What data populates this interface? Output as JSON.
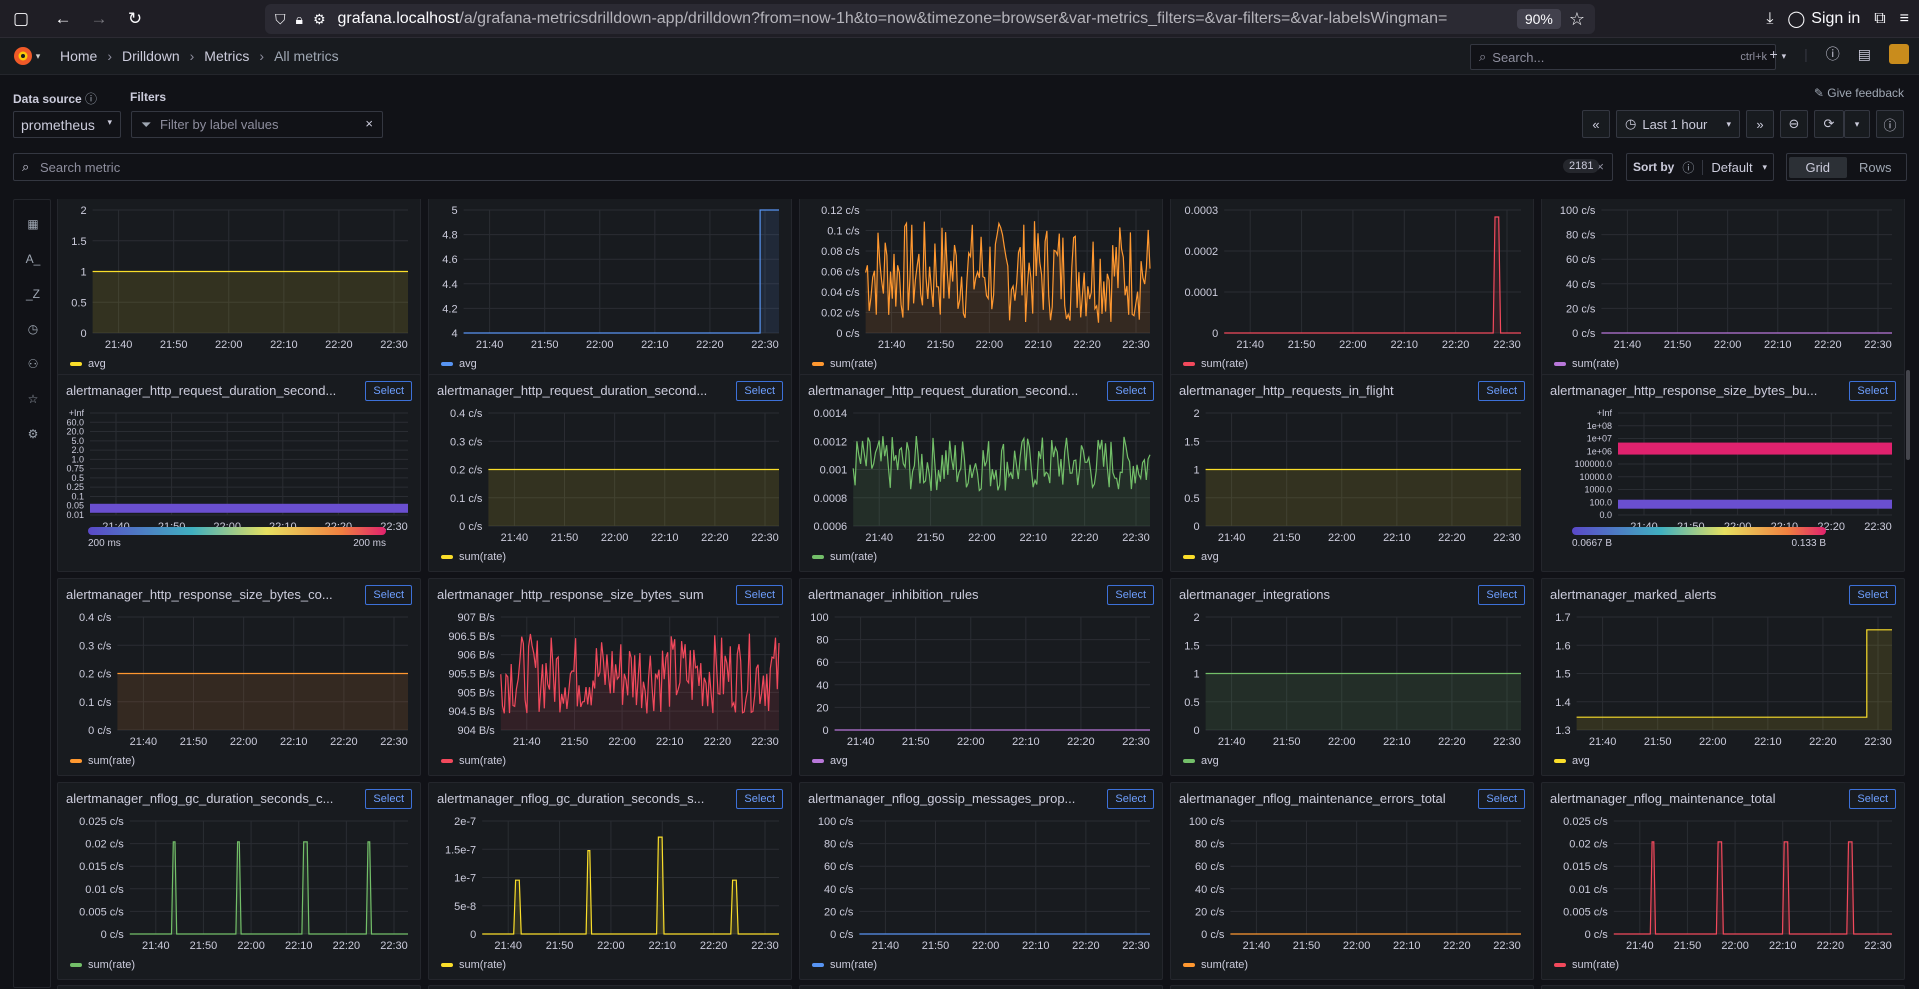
{
  "browser": {
    "url_host": "grafana.localhost",
    "url_path": "/a/grafana-metricsdrilldown-app/drilldown?from=now-1h&to=now&timezone=browser&var-metrics_filters=&var-filters=&var-labelsWingman=",
    "zoom": "90%",
    "signin": "Sign in"
  },
  "nav": {
    "breadcrumbs": [
      "Home",
      "Drilldown",
      "Metrics",
      "All metrics"
    ],
    "search_placeholder": "Search...",
    "search_shortcut": "ctrl+k",
    "plus_label": "+"
  },
  "controls": {
    "datasource_label": "Data source",
    "datasource_value": "prometheus",
    "filters_label": "Filters",
    "filters_placeholder": "Filter by label values",
    "feedback": "Give feedback",
    "time_range": "Last 1 hour",
    "search_metric_placeholder": "Search metric",
    "metric_count": "2181",
    "sort_label": "Sort by",
    "sort_value": "Default",
    "view_grid": "Grid",
    "view_rows": "Rows"
  },
  "sidebar": {
    "icons": [
      "metrics-grid-icon",
      "label-a-icon",
      "label-z-icon",
      "history-icon",
      "hierarchy-icon",
      "star-icon",
      "settings-icon"
    ],
    "labels": [
      "",
      "A_",
      "_Z",
      "",
      "",
      "",
      ""
    ]
  },
  "x_ticks": [
    "21:40",
    "21:50",
    "22:00",
    "22:10",
    "22:20",
    "22:30"
  ],
  "select_label": "Select",
  "colors": {
    "yellow": "#fade2a",
    "blue": "#5794f2",
    "orange": "#ff9830",
    "red": "#f2495c",
    "purple": "#b877d9",
    "green": "#73bf69",
    "accent": "#3d71d9"
  },
  "panels": [
    {
      "title": "",
      "legend": "avg",
      "color": "yellow",
      "y_ticks": [
        "2",
        "1.5",
        "1",
        "0.5",
        "0"
      ],
      "ylim": [
        0,
        2
      ],
      "kind": "flat",
      "value": 1
    },
    {
      "title": "",
      "legend": "avg",
      "color": "blue",
      "y_ticks": [
        "5",
        "4.8",
        "4.6",
        "4.4",
        "4.2",
        "4"
      ],
      "ylim": [
        4,
        5
      ],
      "kind": "step",
      "value": 4,
      "step_value": 5,
      "step_at": 0.94
    },
    {
      "title": "",
      "legend": "sum(rate)",
      "color": "orange",
      "y_ticks": [
        "0.12 c/s",
        "0.1 c/s",
        "0.08 c/s",
        "0.06 c/s",
        "0.04 c/s",
        "0.02 c/s",
        "0 c/s"
      ],
      "ylim": [
        0,
        0.12
      ],
      "kind": "noise",
      "value": 0.06,
      "amp": 0.05
    },
    {
      "title": "",
      "legend": "sum(rate)",
      "color": "red",
      "y_ticks": [
        "0.0003",
        "0.0002",
        "0.0001",
        "0"
      ],
      "ylim": [
        0,
        0.00035
      ],
      "kind": "spikes",
      "value": 0,
      "spikes": [
        [
          0.92,
          0.00033
        ]
      ]
    },
    {
      "title": "",
      "legend": "sum(rate)",
      "color": "purple",
      "y_ticks": [
        "100 c/s",
        "80 c/s",
        "60 c/s",
        "40 c/s",
        "20 c/s",
        "0 c/s"
      ],
      "ylim": [
        0,
        100
      ],
      "kind": "flat",
      "value": 0
    },
    {
      "title": "alertmanager_http_request_duration_second...",
      "legend": "",
      "color": "purple",
      "y_ticks": [
        "+Inf",
        "60.0",
        "20.0",
        "5.0",
        "2.0",
        "1.0",
        "0.75",
        "0.5",
        "0.25",
        "0.1",
        "0.05",
        "0.01"
      ],
      "kind": "heatmap",
      "bands": [
        0.06
      ],
      "scale_min": "200 ms",
      "scale_max": "200 ms"
    },
    {
      "title": "alertmanager_http_request_duration_second...",
      "legend": "sum(rate)",
      "color": "yellow",
      "y_ticks": [
        "0.4 c/s",
        "0.3 c/s",
        "0.2 c/s",
        "0.1 c/s",
        "0 c/s"
      ],
      "ylim": [
        0,
        0.4
      ],
      "kind": "flat",
      "value": 0.2
    },
    {
      "title": "alertmanager_http_request_duration_second...",
      "legend": "sum(rate)",
      "color": "green",
      "y_ticks": [
        "0.0014",
        "0.0012",
        "0.001",
        "0.0008",
        "0.0006"
      ],
      "ylim": [
        0.0005,
        0.0015
      ],
      "kind": "noise",
      "value": 0.00105,
      "amp": 0.00025
    },
    {
      "title": "alertmanager_http_requests_in_flight",
      "legend": "avg",
      "color": "yellow",
      "y_ticks": [
        "2",
        "1.5",
        "1",
        "0.5",
        "0"
      ],
      "ylim": [
        0,
        2
      ],
      "kind": "flat",
      "value": 1
    },
    {
      "title": "alertmanager_http_response_size_bytes_bu...",
      "legend": "",
      "color": "red",
      "y_ticks": [
        "+Inf",
        "1e+08",
        "1e+07",
        "1e+06",
        "100000.0",
        "10000.0",
        "1000.0",
        "100.0",
        "0.0"
      ],
      "kind": "heatmap",
      "bands": [
        0.66,
        0.1
      ],
      "scale_min": "0.0667 B",
      "scale_max": "0.133 B"
    },
    {
      "title": "alertmanager_http_response_size_bytes_co...",
      "legend": "sum(rate)",
      "color": "orange",
      "y_ticks": [
        "0.4 c/s",
        "0.3 c/s",
        "0.2 c/s",
        "0.1 c/s",
        "0 c/s"
      ],
      "ylim": [
        0,
        0.4
      ],
      "kind": "flat",
      "value": 0.2
    },
    {
      "title": "alertmanager_http_response_size_bytes_sum",
      "legend": "sum(rate)",
      "color": "red",
      "y_ticks": [
        "907 B/s",
        "906.5 B/s",
        "906 B/s",
        "905.5 B/s",
        "905 B/s",
        "904.5 B/s",
        "904 B/s"
      ],
      "ylim": [
        903.8,
        907.2
      ],
      "kind": "noise",
      "value": 905.5,
      "amp": 1.2
    },
    {
      "title": "alertmanager_inhibition_rules",
      "legend": "avg",
      "color": "purple",
      "y_ticks": [
        "100",
        "80",
        "60",
        "40",
        "20",
        "0"
      ],
      "ylim": [
        0,
        100
      ],
      "kind": "flat",
      "value": 0
    },
    {
      "title": "alertmanager_integrations",
      "legend": "avg",
      "color": "green",
      "y_ticks": [
        "2",
        "1.5",
        "1",
        "0.5",
        "0"
      ],
      "ylim": [
        0,
        2
      ],
      "kind": "flat",
      "value": 1
    },
    {
      "title": "alertmanager_marked_alerts",
      "legend": "avg",
      "color": "yellow",
      "y_ticks": [
        "1.7",
        "1.6",
        "1.5",
        "1.4",
        "1.3"
      ],
      "ylim": [
        1.28,
        1.72
      ],
      "kind": "step",
      "value": 1.33,
      "step_value": 1.67,
      "step_at": 0.92
    },
    {
      "title": "alertmanager_nflog_gc_duration_seconds_c...",
      "legend": "sum(rate)",
      "color": "green",
      "y_ticks": [
        "0.025 c/s",
        "0.02 c/s",
        "0.015 c/s",
        "0.01 c/s",
        "0.005 c/s",
        "0 c/s"
      ],
      "ylim": [
        0,
        0.027
      ],
      "kind": "spikes",
      "value": 0,
      "spikes": [
        [
          0.16,
          0.022
        ],
        [
          0.39,
          0.022
        ],
        [
          0.63,
          0.022
        ],
        [
          0.86,
          0.022
        ]
      ]
    },
    {
      "title": "alertmanager_nflog_gc_duration_seconds_s...",
      "legend": "sum(rate)",
      "color": "yellow",
      "y_ticks": [
        "2e-7",
        "1.5e-7",
        "1e-7",
        "5e-8",
        "0"
      ],
      "ylim": [
        0,
        2.1e-07
      ],
      "kind": "spikes",
      "value": 0,
      "spikes": [
        [
          0.12,
          1e-07
        ],
        [
          0.36,
          1.55e-07
        ],
        [
          0.6,
          1.8e-07
        ],
        [
          0.85,
          1e-07
        ]
      ]
    },
    {
      "title": "alertmanager_nflog_gossip_messages_prop...",
      "legend": "sum(rate)",
      "color": "blue",
      "y_ticks": [
        "100 c/s",
        "80 c/s",
        "60 c/s",
        "40 c/s",
        "20 c/s",
        "0 c/s"
      ],
      "ylim": [
        0,
        100
      ],
      "kind": "flat",
      "value": 0
    },
    {
      "title": "alertmanager_nflog_maintenance_errors_total",
      "legend": "sum(rate)",
      "color": "orange",
      "y_ticks": [
        "100 c/s",
        "80 c/s",
        "60 c/s",
        "40 c/s",
        "20 c/s",
        "0 c/s"
      ],
      "ylim": [
        0,
        100
      ],
      "kind": "flat",
      "value": 0
    },
    {
      "title": "alertmanager_nflog_maintenance_total",
      "legend": "sum(rate)",
      "color": "red",
      "y_ticks": [
        "0.025 c/s",
        "0.02 c/s",
        "0.015 c/s",
        "0.01 c/s",
        "0.005 c/s",
        "0 c/s"
      ],
      "ylim": [
        0,
        0.027
      ],
      "kind": "spikes",
      "value": 0,
      "spikes": [
        [
          0.14,
          0.022
        ],
        [
          0.38,
          0.022
        ],
        [
          0.62,
          0.022
        ],
        [
          0.85,
          0.022
        ]
      ]
    }
  ]
}
